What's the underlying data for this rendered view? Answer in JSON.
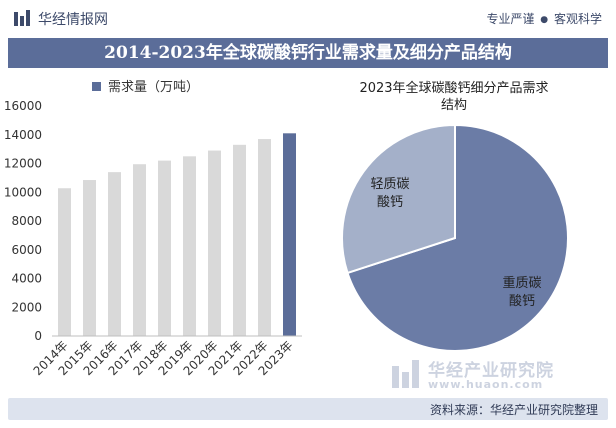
{
  "header": {
    "brand": "华经情报网",
    "slogan_part1": "专业严谨",
    "slogan_sep": "●",
    "slogan_part2": "客观科学"
  },
  "title": "2014-2023年全球碳酸钙行业需求量及细分产品结构",
  "source": "资料来源：华经产业研究院整理",
  "watermark": {
    "name": "华经产业研究院",
    "url": "www.huaon.com"
  },
  "colors": {
    "bar": "#d9d9d9",
    "bar_highlight": "#5b6d99",
    "title_bg": "#5b6d99",
    "pie_heavy": "#6b7ca6",
    "pie_light": "#a4b0c9"
  },
  "chart_data": [
    {
      "type": "bar",
      "legend": "需求量（万吨）",
      "categories": [
        "2014年",
        "2015年",
        "2016年",
        "2017年",
        "2018年",
        "2019年",
        "2020年",
        "2021年",
        "2022年",
        "2023年"
      ],
      "values": [
        10280,
        10850,
        11400,
        11950,
        12200,
        12500,
        12900,
        13300,
        13700,
        14100
      ],
      "yticks": [
        "0",
        "2000",
        "4000",
        "6000",
        "8000",
        "10000",
        "12000",
        "14000",
        "16000"
      ],
      "ylim": [
        0,
        16000
      ],
      "highlight_index": 9
    },
    {
      "type": "pie",
      "title_line1": "2023年全球碳酸钙细分产品需求",
      "title_line2": "结构",
      "slices": [
        {
          "label_line1": "重质碳",
          "label_line2": "酸钙",
          "value": 70
        },
        {
          "label_line1": "轻质碳",
          "label_line2": "酸钙",
          "value": 30
        }
      ]
    }
  ]
}
